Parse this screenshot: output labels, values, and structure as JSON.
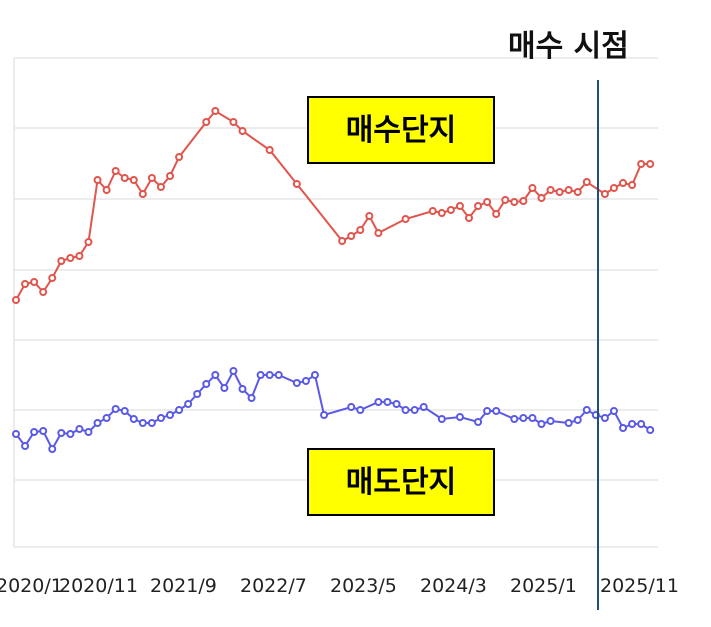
{
  "chart_data": {
    "type": "line",
    "x_tick_labels": [
      "2020/1",
      "2020/11",
      "2021/9",
      "2022/7",
      "2023/5",
      "2024/3",
      "2025/1",
      "2025/11"
    ],
    "grid": "horizontal",
    "marker_label": "매수 시점",
    "marker_at": "2025/1",
    "series": [
      {
        "name": "매수단지",
        "color": "#e0554c",
        "values": [
          [
            0,
            300
          ],
          [
            1,
            284
          ],
          [
            2,
            282
          ],
          [
            3,
            292
          ],
          [
            4,
            278
          ],
          [
            5,
            261
          ],
          [
            6,
            258
          ],
          [
            7,
            256
          ],
          [
            8,
            242
          ],
          [
            9,
            180
          ],
          [
            10,
            190
          ],
          [
            11,
            171
          ],
          [
            12,
            178
          ],
          [
            13,
            180
          ],
          [
            14,
            194
          ],
          [
            15,
            178
          ],
          [
            16,
            187
          ],
          [
            17,
            176
          ],
          [
            18,
            157
          ],
          [
            21,
            122
          ],
          [
            22,
            111
          ],
          [
            24,
            122
          ],
          [
            25,
            131
          ],
          [
            28,
            150
          ],
          [
            31,
            184
          ],
          [
            36,
            241
          ],
          [
            37,
            236
          ],
          [
            38,
            230
          ],
          [
            39,
            216
          ],
          [
            40,
            233
          ],
          [
            43,
            219
          ],
          [
            46,
            211
          ],
          [
            47,
            213
          ],
          [
            48,
            210
          ],
          [
            49,
            206
          ],
          [
            50,
            218
          ],
          [
            51,
            206
          ],
          [
            52,
            202
          ],
          [
            53,
            214
          ],
          [
            54,
            200
          ],
          [
            55,
            202
          ],
          [
            56,
            201
          ],
          [
            57,
            188
          ],
          [
            58,
            198
          ],
          [
            59,
            190
          ],
          [
            60,
            192
          ],
          [
            61,
            190
          ],
          [
            62,
            192
          ],
          [
            63,
            182
          ],
          [
            65,
            194
          ],
          [
            66,
            188
          ],
          [
            67,
            183
          ],
          [
            68,
            185
          ],
          [
            69,
            164
          ],
          [
            70,
            164
          ]
        ]
      },
      {
        "name": "매도단지",
        "color": "#5a5ae6",
        "values": [
          [
            0,
            434
          ],
          [
            1,
            446
          ],
          [
            2,
            432
          ],
          [
            3,
            431
          ],
          [
            4,
            449
          ],
          [
            5,
            433
          ],
          [
            6,
            434
          ],
          [
            7,
            429
          ],
          [
            8,
            432
          ],
          [
            9,
            423
          ],
          [
            10,
            418
          ],
          [
            11,
            409
          ],
          [
            12,
            411
          ],
          [
            13,
            419
          ],
          [
            14,
            423
          ],
          [
            15,
            423
          ],
          [
            16,
            418
          ],
          [
            17,
            415
          ],
          [
            18,
            410
          ],
          [
            19,
            404
          ],
          [
            20,
            394
          ],
          [
            21,
            384
          ],
          [
            22,
            375
          ],
          [
            23,
            388
          ],
          [
            24,
            371
          ],
          [
            25,
            389
          ],
          [
            26,
            398
          ],
          [
            27,
            375
          ],
          [
            28,
            375
          ],
          [
            29,
            375
          ],
          [
            31,
            383
          ],
          [
            32,
            381
          ],
          [
            33,
            375
          ],
          [
            34,
            415
          ],
          [
            37,
            407
          ],
          [
            38,
            410
          ],
          [
            40,
            402
          ],
          [
            41,
            402
          ],
          [
            42,
            404
          ],
          [
            43,
            410
          ],
          [
            44,
            410
          ],
          [
            45,
            407
          ],
          [
            47,
            419
          ],
          [
            49,
            417
          ],
          [
            51,
            422
          ],
          [
            52,
            411
          ],
          [
            53,
            411
          ],
          [
            55,
            419
          ],
          [
            56,
            418
          ],
          [
            57,
            418
          ],
          [
            58,
            424
          ],
          [
            59,
            421
          ],
          [
            61,
            423
          ],
          [
            62,
            420
          ],
          [
            63,
            410
          ],
          [
            64,
            415
          ],
          [
            65,
            418
          ],
          [
            66,
            411
          ],
          [
            67,
            428
          ],
          [
            68,
            424
          ],
          [
            69,
            424
          ],
          [
            70,
            430
          ]
        ]
      }
    ]
  }
}
